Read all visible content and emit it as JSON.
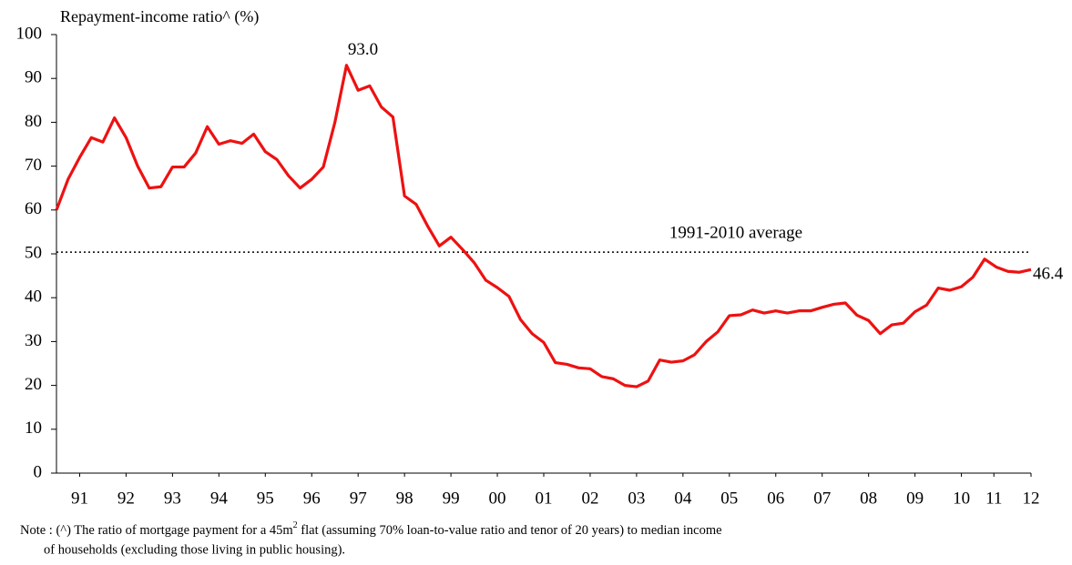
{
  "chart_data": {
    "type": "line",
    "y_axis_label": "Repayment-income ratio^ (%)",
    "x": [
      1991,
      1991.25,
      1991.5,
      1991.75,
      1992,
      1992.25,
      1992.5,
      1992.75,
      1993,
      1993.25,
      1993.5,
      1993.75,
      1994,
      1994.25,
      1994.5,
      1994.75,
      1995,
      1995.25,
      1995.5,
      1995.75,
      1996,
      1996.25,
      1996.5,
      1996.75,
      1997,
      1997.25,
      1997.5,
      1997.75,
      1998,
      1998.25,
      1998.5,
      1998.75,
      1999,
      1999.25,
      1999.5,
      1999.75,
      2000,
      2000.25,
      2000.5,
      2000.75,
      2001,
      2001.25,
      2001.5,
      2001.75,
      2002,
      2002.25,
      2002.5,
      2002.75,
      2003,
      2003.25,
      2003.5,
      2003.75,
      2004,
      2004.25,
      2004.5,
      2004.75,
      2005,
      2005.25,
      2005.5,
      2005.75,
      2006,
      2006.25,
      2006.5,
      2006.75,
      2007,
      2007.25,
      2007.5,
      2007.75,
      2008,
      2008.25,
      2008.5,
      2008.75,
      2009,
      2009.25,
      2009.5,
      2009.75,
      2010,
      2010.25,
      2010.5,
      2010.75,
      2011,
      2011.25,
      2011.5,
      2011.75,
      2012
    ],
    "series": [
      {
        "name": "Repayment-income ratio",
        "color": "#ee1111",
        "values": [
          60,
          67,
          72,
          76.5,
          75.5,
          81,
          76.5,
          70,
          65,
          65.3,
          69.8,
          69.8,
          73,
          79,
          75,
          75.8,
          75.2,
          77.3,
          73.3,
          71.5,
          67.8,
          65,
          67,
          69.8,
          80,
          93.0,
          87.3,
          88.3,
          83.5,
          81.2,
          63.2,
          61.3,
          56.3,
          51.8,
          53.8,
          51,
          48,
          44,
          42.3,
          40.3,
          35,
          31.8,
          29.8,
          25.2,
          24.8,
          24,
          23.8,
          22,
          21.5,
          20,
          19.7,
          21,
          25.8,
          25.3,
          25.6,
          27,
          30,
          32.2,
          35.9,
          36.1,
          37.2,
          36.5,
          37,
          36.5,
          37,
          37,
          37.8,
          38.5,
          38.8,
          36,
          34.8,
          31.8,
          33.8,
          34.2,
          36.8,
          38.3,
          42.2,
          41.7,
          42.5,
          44.7,
          48.8,
          47,
          46,
          45.8,
          46.4
        ]
      }
    ],
    "xlim": [
      1991,
      2012
    ],
    "xticks": [
      {
        "value": 1991.5,
        "label": "91"
      },
      {
        "value": 1992.5,
        "label": "92"
      },
      {
        "value": 1993.5,
        "label": "93"
      },
      {
        "value": 1994.5,
        "label": "94"
      },
      {
        "value": 1995.5,
        "label": "95"
      },
      {
        "value": 1996.5,
        "label": "96"
      },
      {
        "value": 1997.5,
        "label": "97"
      },
      {
        "value": 1998.5,
        "label": "98"
      },
      {
        "value": 1999.5,
        "label": "99"
      },
      {
        "value": 2000.5,
        "label": "00"
      },
      {
        "value": 2001.5,
        "label": "01"
      },
      {
        "value": 2002.5,
        "label": "02"
      },
      {
        "value": 2003.5,
        "label": "03"
      },
      {
        "value": 2004.5,
        "label": "04"
      },
      {
        "value": 2005.5,
        "label": "05"
      },
      {
        "value": 2006.5,
        "label": "06"
      },
      {
        "value": 2007.5,
        "label": "07"
      },
      {
        "value": 2008.5,
        "label": "08"
      },
      {
        "value": 2009.5,
        "label": "09"
      },
      {
        "value": 2010.5,
        "label": "10"
      },
      {
        "value": 2011.2,
        "label": "11"
      },
      {
        "value": 2012,
        "label": "12"
      }
    ],
    "ylim": [
      0,
      100
    ],
    "yticks": [
      0,
      10,
      20,
      30,
      40,
      50,
      60,
      70,
      80,
      90,
      100
    ],
    "reference_line": {
      "value": 50.4,
      "label": "1991-2010 average"
    },
    "annotations": [
      {
        "index": 25,
        "text": "93.0"
      },
      {
        "index": 84,
        "text": "46.4"
      }
    ],
    "note": {
      "line1_a": "Note : (^) The ratio of mortgage payment for a 45m",
      "line1_sup": "2",
      "line1_b": " flat (assuming 70% loan-to-value ratio and tenor of 20 years) to median income",
      "line2": "of households (excluding those living in public housing)."
    }
  }
}
